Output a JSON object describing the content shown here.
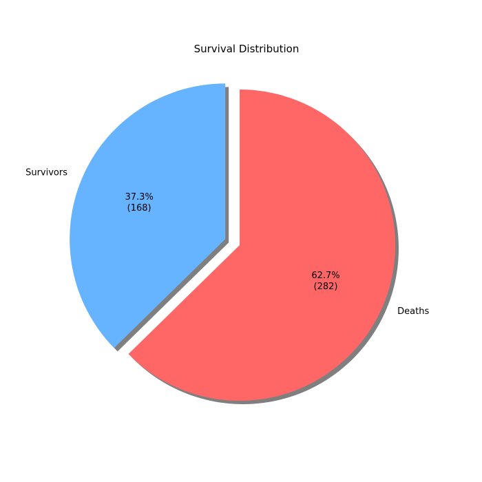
{
  "chart_data": {
    "type": "pie",
    "title": "Survival Distribution",
    "slices": [
      {
        "label": "Survivors",
        "value": 168,
        "percent_label": "37.3%",
        "count_label": "(168)",
        "color": "#66b3ff",
        "exploded": true
      },
      {
        "label": "Deaths",
        "value": 282,
        "percent_label": "62.7%",
        "count_label": "(282)",
        "color": "#ff6666",
        "exploded": false
      }
    ],
    "shadow": true
  }
}
